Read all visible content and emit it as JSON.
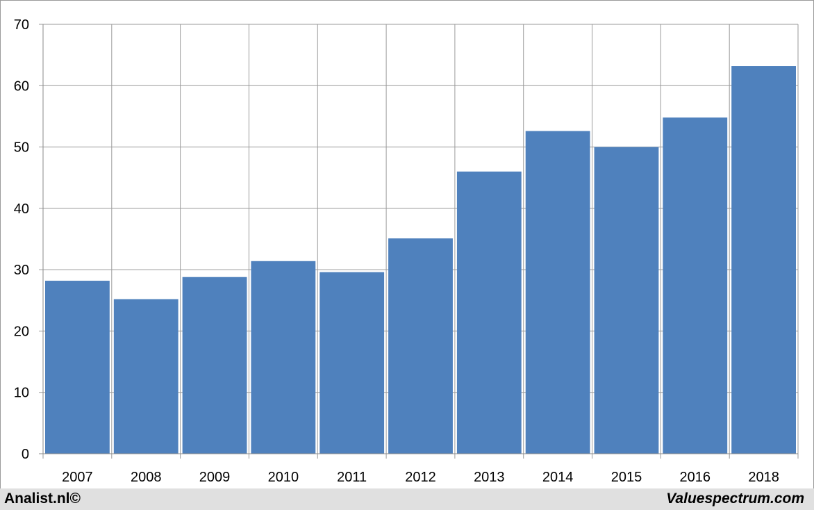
{
  "chart_data": {
    "type": "bar",
    "categories": [
      "2007",
      "2008",
      "2009",
      "2010",
      "2011",
      "2012",
      "2013",
      "2014",
      "2015",
      "2016",
      "2018"
    ],
    "values": [
      28.2,
      25.2,
      28.8,
      31.4,
      29.6,
      35.1,
      46.0,
      52.6,
      50.0,
      54.8,
      63.2
    ],
    "yticks": [
      "0",
      "10",
      "20",
      "30",
      "40",
      "50",
      "60",
      "70"
    ],
    "ylim": [
      0,
      70
    ],
    "grid": true,
    "bar_color": "#4f81bd",
    "grid_color": "#9a9a9a"
  },
  "footer": {
    "left": "Analist.nl©",
    "right": "Valuespectrum.com"
  }
}
